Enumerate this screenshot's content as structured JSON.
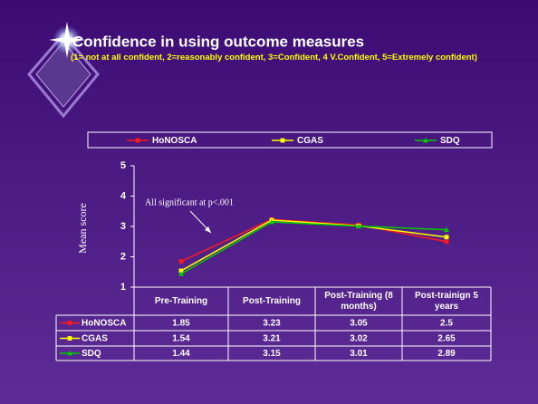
{
  "chart_data": {
    "type": "line",
    "title": "Confidence in using outcome measures",
    "subtitle": "(1= not at all confident, 2=reasonably confident, 3=Confident, 4 V.Confident, 5=Extremely confident)",
    "ylabel": "Mean score",
    "annotation": "All significant at p<.001",
    "categories": [
      "Pre-Training",
      "Post-Training",
      "Post-Training (8 months)",
      "Post-trainign 5 years"
    ],
    "series": [
      {
        "name": "HoNOSCA",
        "color": "#ff1a1a",
        "marker": "square",
        "values": [
          1.85,
          3.23,
          3.05,
          2.5
        ]
      },
      {
        "name": "CGAS",
        "color": "#ffff00",
        "marker": "square",
        "values": [
          1.54,
          3.21,
          3.02,
          2.65
        ]
      },
      {
        "name": "SDQ",
        "color": "#00cc00",
        "marker": "triangle",
        "values": [
          1.44,
          3.15,
          3.01,
          2.89
        ]
      }
    ],
    "ylim": [
      1,
      5
    ],
    "yticks": [
      1,
      2,
      3,
      4,
      5
    ],
    "grid": false
  }
}
